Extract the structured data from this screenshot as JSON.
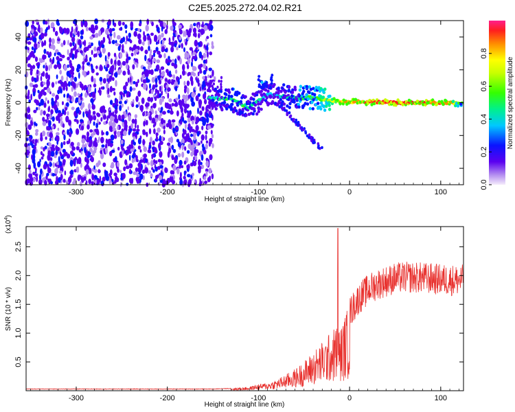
{
  "chart_data": [
    {
      "type": "heatmap",
      "title": "C2E5.2025.272.04.02.R21",
      "xlabel": "Height of straight line (km)",
      "ylabel": "Frequency (Hz)",
      "xlim": [
        -355,
        125
      ],
      "ylim": [
        -50,
        50
      ],
      "xticks": [
        -300,
        -200,
        -100,
        0,
        100
      ],
      "xtick_labels": [
        "-300",
        "-200",
        "-100",
        "0",
        "100"
      ],
      "yticks": [
        -40,
        -20,
        0,
        20,
        40
      ],
      "ytick_labels": [
        "-40",
        "-20",
        "0",
        "20",
        "40"
      ],
      "colorbar": {
        "label": "Normalized spectral amplitude",
        "range": [
          0,
          1
        ],
        "ticks": [
          0,
          0.2,
          0.4,
          0.6,
          0.8
        ],
        "tick_labels": [
          "0.0",
          "0.2",
          "0.4",
          "0.6",
          "0.8"
        ],
        "colormap": "rainbow"
      },
      "features": {
        "noise_region_x": [
          -355,
          -150
        ],
        "signal_track": [
          {
            "x": -155,
            "freq": 3,
            "amp": 0.35
          },
          {
            "x": -130,
            "freq": 2,
            "amp": 0.45
          },
          {
            "x": -110,
            "freq": -3,
            "amp": 0.4
          },
          {
            "x": -90,
            "freq": 5,
            "amp": 0.35
          },
          {
            "x": -60,
            "freq": 3,
            "amp": 0.45
          },
          {
            "x": -40,
            "freq": 3,
            "amp": 0.5
          },
          {
            "x": -20,
            "freq": 1,
            "amp": 0.7
          },
          {
            "x": 0,
            "freq": 0.5,
            "amp": 0.8
          },
          {
            "x": 50,
            "freq": 0,
            "amp": 0.9
          },
          {
            "x": 110,
            "freq": 0,
            "amp": 0.8
          },
          {
            "x": 125,
            "freq": -1,
            "amp": 0.5
          }
        ]
      }
    },
    {
      "type": "line",
      "exponent_label": "(x10",
      "exponent_sup": "4",
      "exponent_close": ")",
      "xlabel": "Height of straight line (km)",
      "ylabel": "SNR (10 * v/v)",
      "xlim": [
        -355,
        125
      ],
      "ylim": [
        0,
        2.85
      ],
      "xticks": [
        -300,
        -200,
        -100,
        0,
        100
      ],
      "xtick_labels": [
        "-300",
        "-200",
        "-100",
        "0",
        "100"
      ],
      "yticks": [
        0.5,
        1.0,
        1.5,
        2.0,
        2.5
      ],
      "ytick_labels": [
        "0.5",
        "1.0",
        "1.5",
        "2.0",
        "2.5"
      ],
      "color": "#e8312e",
      "series_envelope": {
        "x": [
          -355,
          -150,
          -130,
          -110,
          -100,
          -90,
          -80,
          -70,
          -60,
          -50,
          -40,
          -30,
          -20,
          -15,
          -10,
          0,
          10,
          20,
          30,
          40,
          50,
          60,
          80,
          100,
          110,
          125
        ],
        "y": [
          0.03,
          0.03,
          0.04,
          0.06,
          0.1,
          0.12,
          0.17,
          0.25,
          0.33,
          0.45,
          0.6,
          0.75,
          0.9,
          1.0,
          0.95,
          1.35,
          1.6,
          1.75,
          1.85,
          1.9,
          1.95,
          1.97,
          1.96,
          1.93,
          1.92,
          1.92
        ]
      },
      "spike": {
        "x": -13,
        "y": 2.82
      }
    }
  ]
}
